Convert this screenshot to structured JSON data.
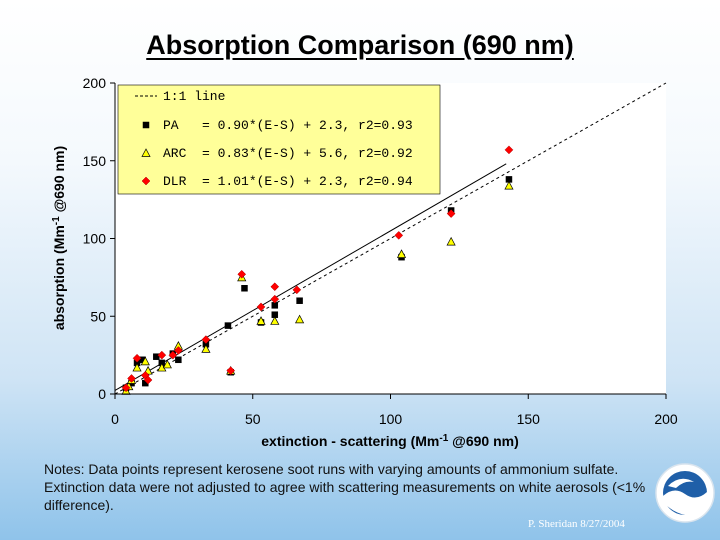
{
  "slide": {
    "title": "Absorption Comparison (690 nm)",
    "notes": "Notes:  Data points represent kerosene soot runs with varying amounts of ammonium sulfate.  Extinction data were not adjusted to agree with scattering measurements on white aerosols (<1% difference).",
    "credit": "P. Sheridan  8/27/2004",
    "logo_text": "NOAA"
  },
  "chart_data": {
    "type": "scatter",
    "title": "",
    "xlabel": "extinction - scattering (Mm",
    "xlabel_sup": "-1",
    "xlabel_tail": " @690 nm)",
    "ylabel": "absorption (Mm",
    "ylabel_sup": "-1",
    "ylabel_tail": " @690 nm)",
    "xlim": [
      0,
      200
    ],
    "ylim": [
      0,
      200
    ],
    "xticks": [
      0,
      50,
      100,
      150,
      200
    ],
    "yticks": [
      0,
      50,
      100,
      150,
      200
    ],
    "xtick_labels": [
      "0",
      "50",
      "100",
      "150",
      "200"
    ],
    "ytick_labels": [
      "0",
      "50",
      "100",
      "150",
      "200"
    ],
    "grid": false,
    "legend_placement": "top-left",
    "legend_background": "#ffff99",
    "legend": [
      {
        "marker": "dash",
        "label": "1:1 line"
      },
      {
        "marker": "square",
        "label": "PA   = 0.90*(E-S) + 2.3, r2=0.93"
      },
      {
        "marker": "triangle",
        "label": "ARC  = 0.83*(E-S) + 5.6, r2=0.92"
      },
      {
        "marker": "diamond",
        "label": "DLR  = 1.01*(E-S) + 2.3, r2=0.94"
      }
    ],
    "reference_line": {
      "name": "1:1 line",
      "x": [
        0,
        200
      ],
      "y": [
        0,
        200
      ],
      "style": "dashed"
    },
    "fit_line": {
      "x": [
        0,
        142
      ],
      "y": [
        2.3,
        148
      ],
      "style": "solid"
    },
    "series": [
      {
        "name": "PA",
        "marker": "square",
        "color": "#000000",
        "x": [
          4,
          6,
          8,
          10,
          11,
          15,
          17,
          21,
          23,
          33,
          41,
          42,
          47,
          53,
          58,
          58,
          67,
          104,
          122,
          143
        ],
        "y": [
          4,
          7,
          20,
          22,
          7,
          24,
          20,
          26,
          22,
          32,
          44,
          14,
          68,
          46,
          57,
          51,
          60,
          88,
          118,
          138
        ]
      },
      {
        "name": "ARC",
        "marker": "triangle",
        "color": "#ffff00",
        "x": [
          4,
          5,
          6,
          8,
          11,
          12,
          17,
          19,
          23,
          33,
          42,
          46,
          53,
          58,
          67,
          104,
          122,
          143
        ],
        "y": [
          2,
          5,
          9,
          17,
          21,
          15,
          17,
          19,
          31,
          29,
          15,
          75,
          47,
          47,
          48,
          90,
          98,
          134
        ]
      },
      {
        "name": "DLR",
        "marker": "diamond",
        "color": "#ff0000",
        "x": [
          4,
          6,
          8,
          11,
          12,
          17,
          21,
          23,
          33,
          42,
          46,
          53,
          58,
          58,
          66,
          103,
          122,
          143
        ],
        "y": [
          4,
          10,
          23,
          12,
          9,
          25,
          25,
          28,
          35,
          15,
          77,
          56,
          61,
          69,
          67,
          102,
          116,
          157
        ]
      }
    ]
  }
}
